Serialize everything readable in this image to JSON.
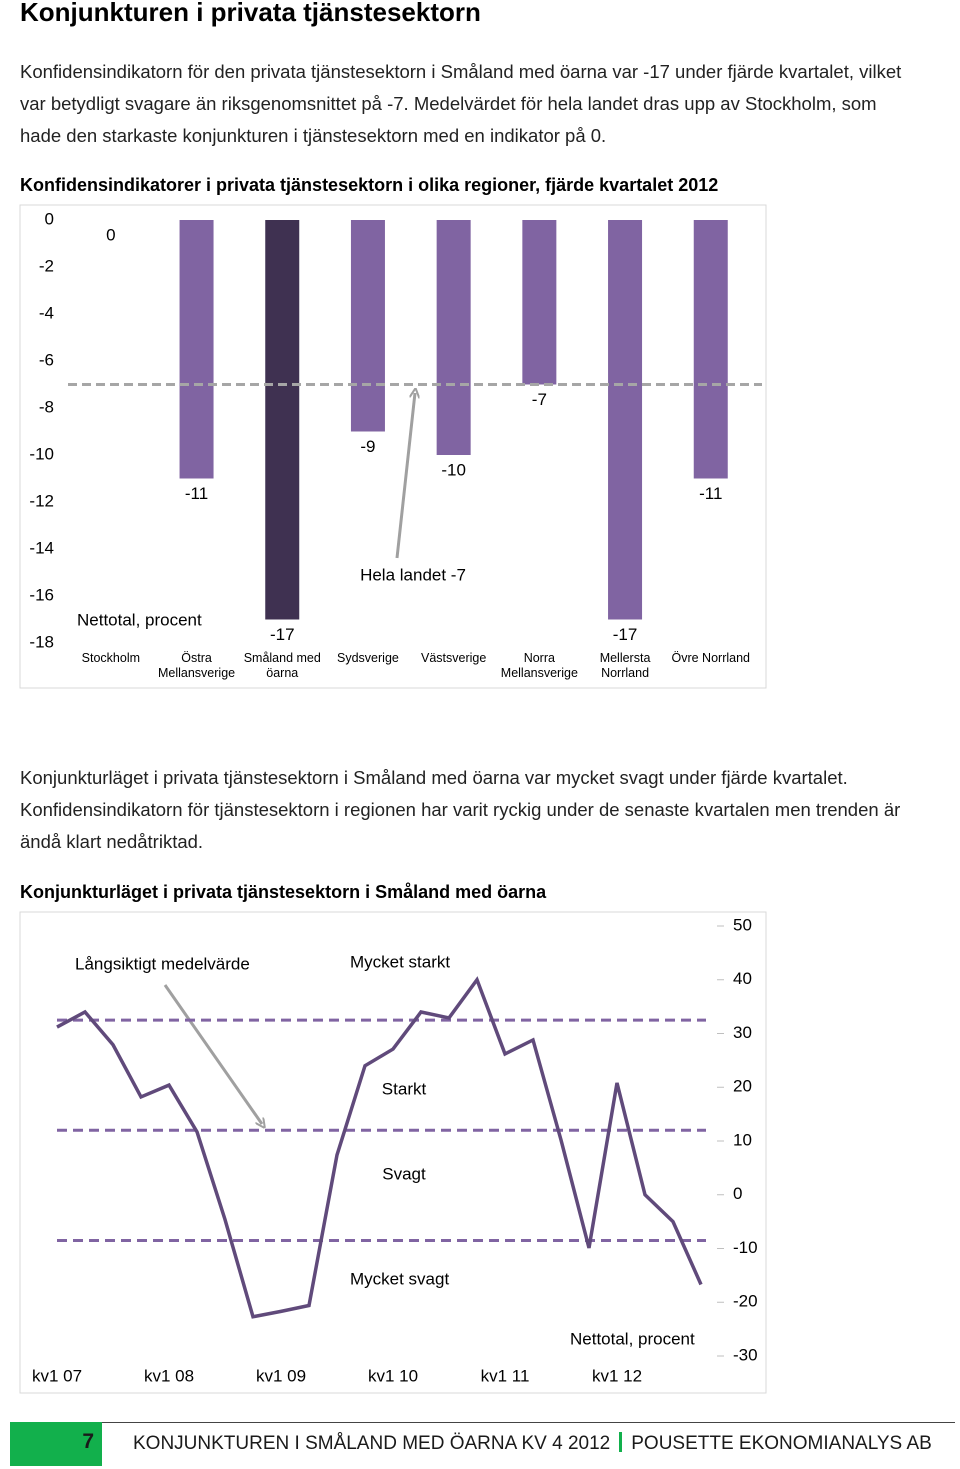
{
  "title": "Konjunkturen i privata tjänstesektorn",
  "paragraphs": [
    "Konfidensindikatorn för den privata tjänstesektorn i Småland med öarna var -17 under fjärde kvartalet, vilket var betydligt svagare än riksgenomsnittet på -7. Medelvärdet för hela landet dras upp av Stockholm, som hade den starkaste konjunkturen i tjänstesektorn med en indikator på 0.",
    "Konjunkturläget i privata tjänstesektorn i Småland med öarna var mycket svagt under fjärde kvartalet. Konfidensindikatorn för tjänstesektorn i regionen har varit ryckig under de senaste kvartalen men trenden är ändå klart nedåtriktad."
  ],
  "chart_data": [
    {
      "type": "bar",
      "title": "Konfidensindikatorer i privata tjänstesektorn i olika regioner, fjärde kvartalet 2012",
      "categories": [
        "Stockholm",
        "Östra Mellansverige",
        "Småland med öarna",
        "Sydsverige",
        "Västsverige",
        "Norra Mellansverige",
        "Mellersta Norrland",
        "Övre Norrland"
      ],
      "values": [
        0,
        -11,
        -17,
        -9,
        -10,
        -7,
        -17,
        -11
      ],
      "colors": [
        "#8064a2",
        "#8064a2",
        "#3f3151",
        "#8064a2",
        "#8064a2",
        "#8064a2",
        "#8064a2",
        "#8064a2"
      ],
      "ylim": [
        -18,
        0
      ],
      "yticks": [
        0,
        -2,
        -4,
        -6,
        -8,
        -10,
        -12,
        -14,
        -16,
        -18
      ],
      "reference": {
        "value": -7,
        "label": "Hela landet -7"
      },
      "annotation": "Nettotal, procent"
    },
    {
      "type": "line",
      "title": "Konjunkturläget i privata tjänstesektorn i Småland med öarna",
      "categories": [
        "kv1 07",
        null,
        null,
        null,
        "kv1 08",
        null,
        null,
        null,
        "kv1 09",
        null,
        null,
        null,
        "kv1 10",
        null,
        null,
        null,
        "kv1 11",
        null,
        null,
        null,
        "kv1 12",
        null,
        null,
        null
      ],
      "values": [
        31.2,
        34,
        27.9,
        18.2,
        20.4,
        11.7,
        -4.6,
        -22.7,
        -21.7,
        -20.6,
        7.4,
        24,
        27.1,
        34,
        32.9,
        40,
        26.2,
        28.8,
        10.2,
        -9.9,
        20.8,
        0,
        -5,
        -16.7
      ],
      "color": "#604a7b",
      "ylim": [
        -30,
        50
      ],
      "yticks": [
        50,
        40,
        30,
        20,
        10,
        0,
        -10,
        -20,
        -30
      ],
      "reference_lines": [
        32.5,
        12,
        -8.5
      ],
      "reference_color": "#8064a2",
      "annotations": [
        "Långsiktigt medelvärde",
        "Mycket starkt",
        "Starkt",
        "Svagt",
        "Mycket svagt",
        "Nettotal, procent"
      ]
    }
  ],
  "footer": {
    "page": 7,
    "left": "KONJUNKTUREN I SMÅLAND MED ÖARNA KV 4 2012",
    "right": "POUSETTE EKONOMIANALYS AB"
  }
}
